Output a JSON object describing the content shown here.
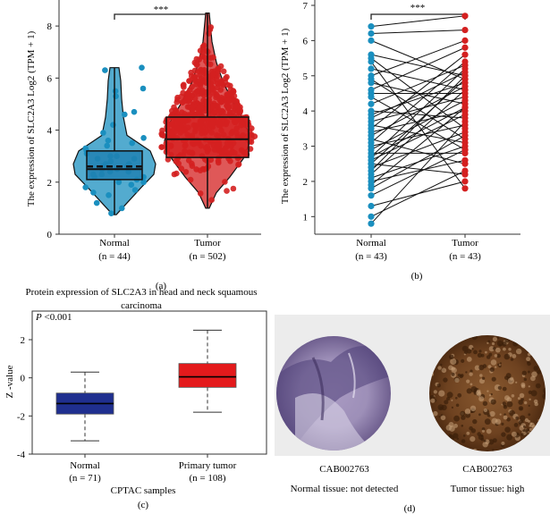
{
  "panels": {
    "a": {
      "label": "(a)"
    },
    "b": {
      "label": "(b)"
    },
    "c": {
      "label": "(c)"
    },
    "d": {
      "label": "(d)"
    }
  },
  "colors": {
    "normal_blue": "#1a8fbf",
    "normal_box": "#1f7fb0",
    "tumor_red": "#d42020",
    "cptac_normal": "#1f2f8f",
    "cptac_tumor": "#e41a1c"
  },
  "chart_data": [
    {
      "type": "violin-box",
      "panel": "a",
      "ylabel": "The expression of SLC2A3 Log2 (TPM + 1)",
      "ylim": [
        0,
        9
      ],
      "yticks": [
        0,
        2,
        4,
        6,
        8
      ],
      "categories": [
        "Normal",
        "Tumor"
      ],
      "category_counts": [
        "(n = 44)",
        "(n = 502)"
      ],
      "significance": "***",
      "series": [
        {
          "name": "Normal",
          "n": 44,
          "min": 0.75,
          "q1": 2.1,
          "median": 2.5,
          "mean": 2.6,
          "q3": 3.2,
          "max": 6.4
        },
        {
          "name": "Tumor",
          "n": 502,
          "min": 1.0,
          "q1": 2.95,
          "median": 3.65,
          "q3": 4.5,
          "max": 8.5
        }
      ],
      "normal_points": [
        0.8,
        1.0,
        1.2,
        1.5,
        1.6,
        1.8,
        1.9,
        2.0,
        2.1,
        2.2,
        2.3,
        2.3,
        2.4,
        2.4,
        2.5,
        2.5,
        2.6,
        2.6,
        2.7,
        2.8,
        2.9,
        3.0,
        3.0,
        3.1,
        3.2,
        3.3,
        3.5,
        3.7,
        3.9,
        4.2,
        4.6,
        4.7,
        5.3,
        5.5,
        5.6,
        6.3,
        6.4,
        2.2,
        2.7,
        3.4,
        1.7,
        2.0,
        2.9,
        3.6
      ]
    },
    {
      "type": "paired-line",
      "panel": "b",
      "ylabel": "The expression of SLC2A3 Log2 (TPM + 1)",
      "ylim": [
        0.5,
        7
      ],
      "yticks": [
        1,
        2,
        3,
        4,
        5,
        6,
        7
      ],
      "categories": [
        "Normal",
        "Tumor"
      ],
      "category_counts": [
        "(n = 43)",
        "(n = 43)"
      ],
      "significance": "***",
      "pairs": [
        [
          0.8,
          3.7
        ],
        [
          1.0,
          2.3
        ],
        [
          1.3,
          2.0
        ],
        [
          1.6,
          2.9
        ],
        [
          1.8,
          3.3
        ],
        [
          1.9,
          4.1
        ],
        [
          2.0,
          2.6
        ],
        [
          2.1,
          3.0
        ],
        [
          2.2,
          4.6
        ],
        [
          2.3,
          5.0
        ],
        [
          2.4,
          3.4
        ],
        [
          2.5,
          2.2
        ],
        [
          2.5,
          4.9
        ],
        [
          2.6,
          3.9
        ],
        [
          2.7,
          5.2
        ],
        [
          2.8,
          2.8
        ],
        [
          2.9,
          4.3
        ],
        [
          3.0,
          3.6
        ],
        [
          3.1,
          5.4
        ],
        [
          3.2,
          2.5
        ],
        [
          3.3,
          4.7
        ],
        [
          3.4,
          4.0
        ],
        [
          3.5,
          5.6
        ],
        [
          3.6,
          3.1
        ],
        [
          3.7,
          4.4
        ],
        [
          3.8,
          5.1
        ],
        [
          3.9,
          4.8
        ],
        [
          4.0,
          3.8
        ],
        [
          4.2,
          5.3
        ],
        [
          4.4,
          2.9
        ],
        [
          4.5,
          4.5
        ],
        [
          4.6,
          5.8
        ],
        [
          4.8,
          4.2
        ],
        [
          4.9,
          3.2
        ],
        [
          5.0,
          6.0
        ],
        [
          5.2,
          4.6
        ],
        [
          5.4,
          1.8
        ],
        [
          5.5,
          3.5
        ],
        [
          5.6,
          5.0
        ],
        [
          6.0,
          4.9
        ],
        [
          6.2,
          6.3
        ],
        [
          6.4,
          6.7
        ],
        [
          2.7,
          4.1
        ]
      ]
    },
    {
      "type": "box",
      "panel": "c",
      "title": "Protein expression of SLC2A3 in head and neck squamous carcinoma",
      "title_line1": "Protein expression of SLC2A3 in head and neck squamous",
      "title_line2": "carcinoma",
      "pvalue_label": "P",
      "pvalue_text": " <0.001",
      "ylabel": "Z -value",
      "xlabel": "CPTAC samples",
      "ylim": [
        -4,
        3.5
      ],
      "yticks": [
        -4,
        -2,
        0,
        2
      ],
      "categories": [
        "Normal",
        "Primary tumor"
      ],
      "category_counts": [
        "(n = 71)",
        "(n = 108)"
      ],
      "series": [
        {
          "name": "Normal",
          "min": -3.3,
          "q1": -1.9,
          "median": -1.35,
          "q3": -0.8,
          "max": 0.3
        },
        {
          "name": "Primary tumor",
          "min": -1.8,
          "q1": -0.5,
          "median": 0.05,
          "q3": 0.75,
          "max": 2.5
        }
      ]
    }
  ],
  "tissue": {
    "left": {
      "antibody": "CAB002763",
      "caption": "Normal tissue: not detected"
    },
    "right": {
      "antibody": "CAB002763",
      "caption": "Tumor tissue: high"
    }
  }
}
